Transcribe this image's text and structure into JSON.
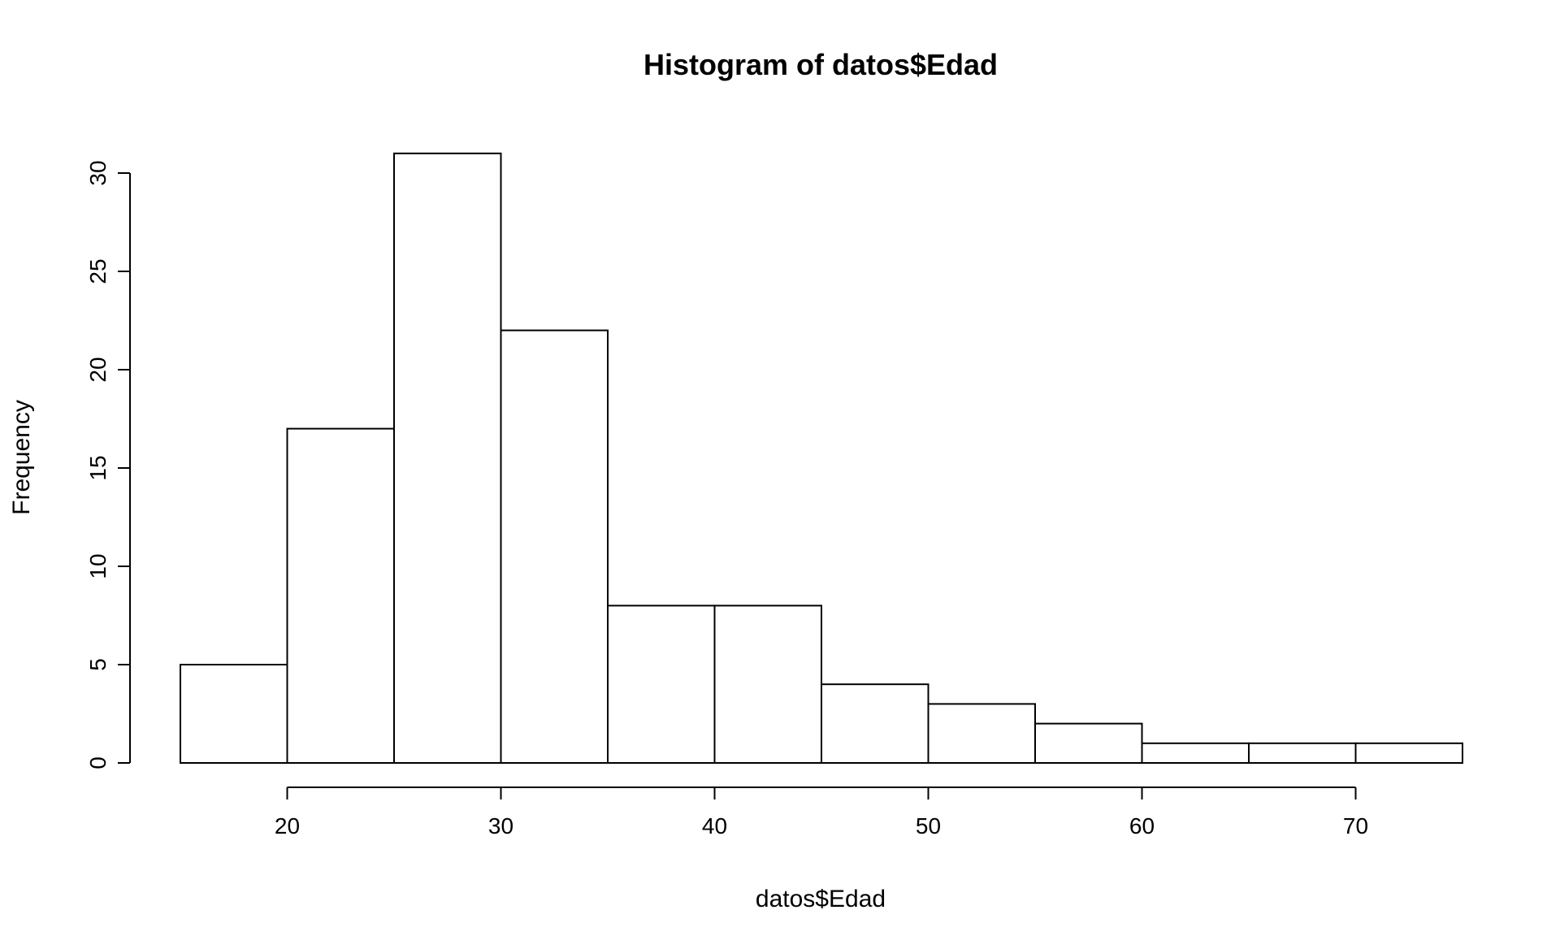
{
  "chart_data": {
    "type": "bar",
    "title": "Histogram of datos$Edad",
    "xlabel": "datos$Edad",
    "ylabel": "Frequency",
    "bin_edges": [
      15,
      20,
      25,
      30,
      35,
      40,
      45,
      50,
      55,
      60,
      65,
      70,
      75
    ],
    "values": [
      5,
      17,
      31,
      22,
      8,
      8,
      4,
      3,
      2,
      1,
      1,
      1
    ],
    "xlim": [
      15,
      75
    ],
    "ylim": [
      0,
      31
    ],
    "x_ticks": [
      20,
      30,
      40,
      50,
      60,
      70
    ],
    "y_ticks": [
      0,
      5,
      10,
      15,
      20,
      25,
      30
    ],
    "grid": false,
    "legend": "none",
    "bar_fill": "#ffffff",
    "bar_stroke": "#000000"
  }
}
